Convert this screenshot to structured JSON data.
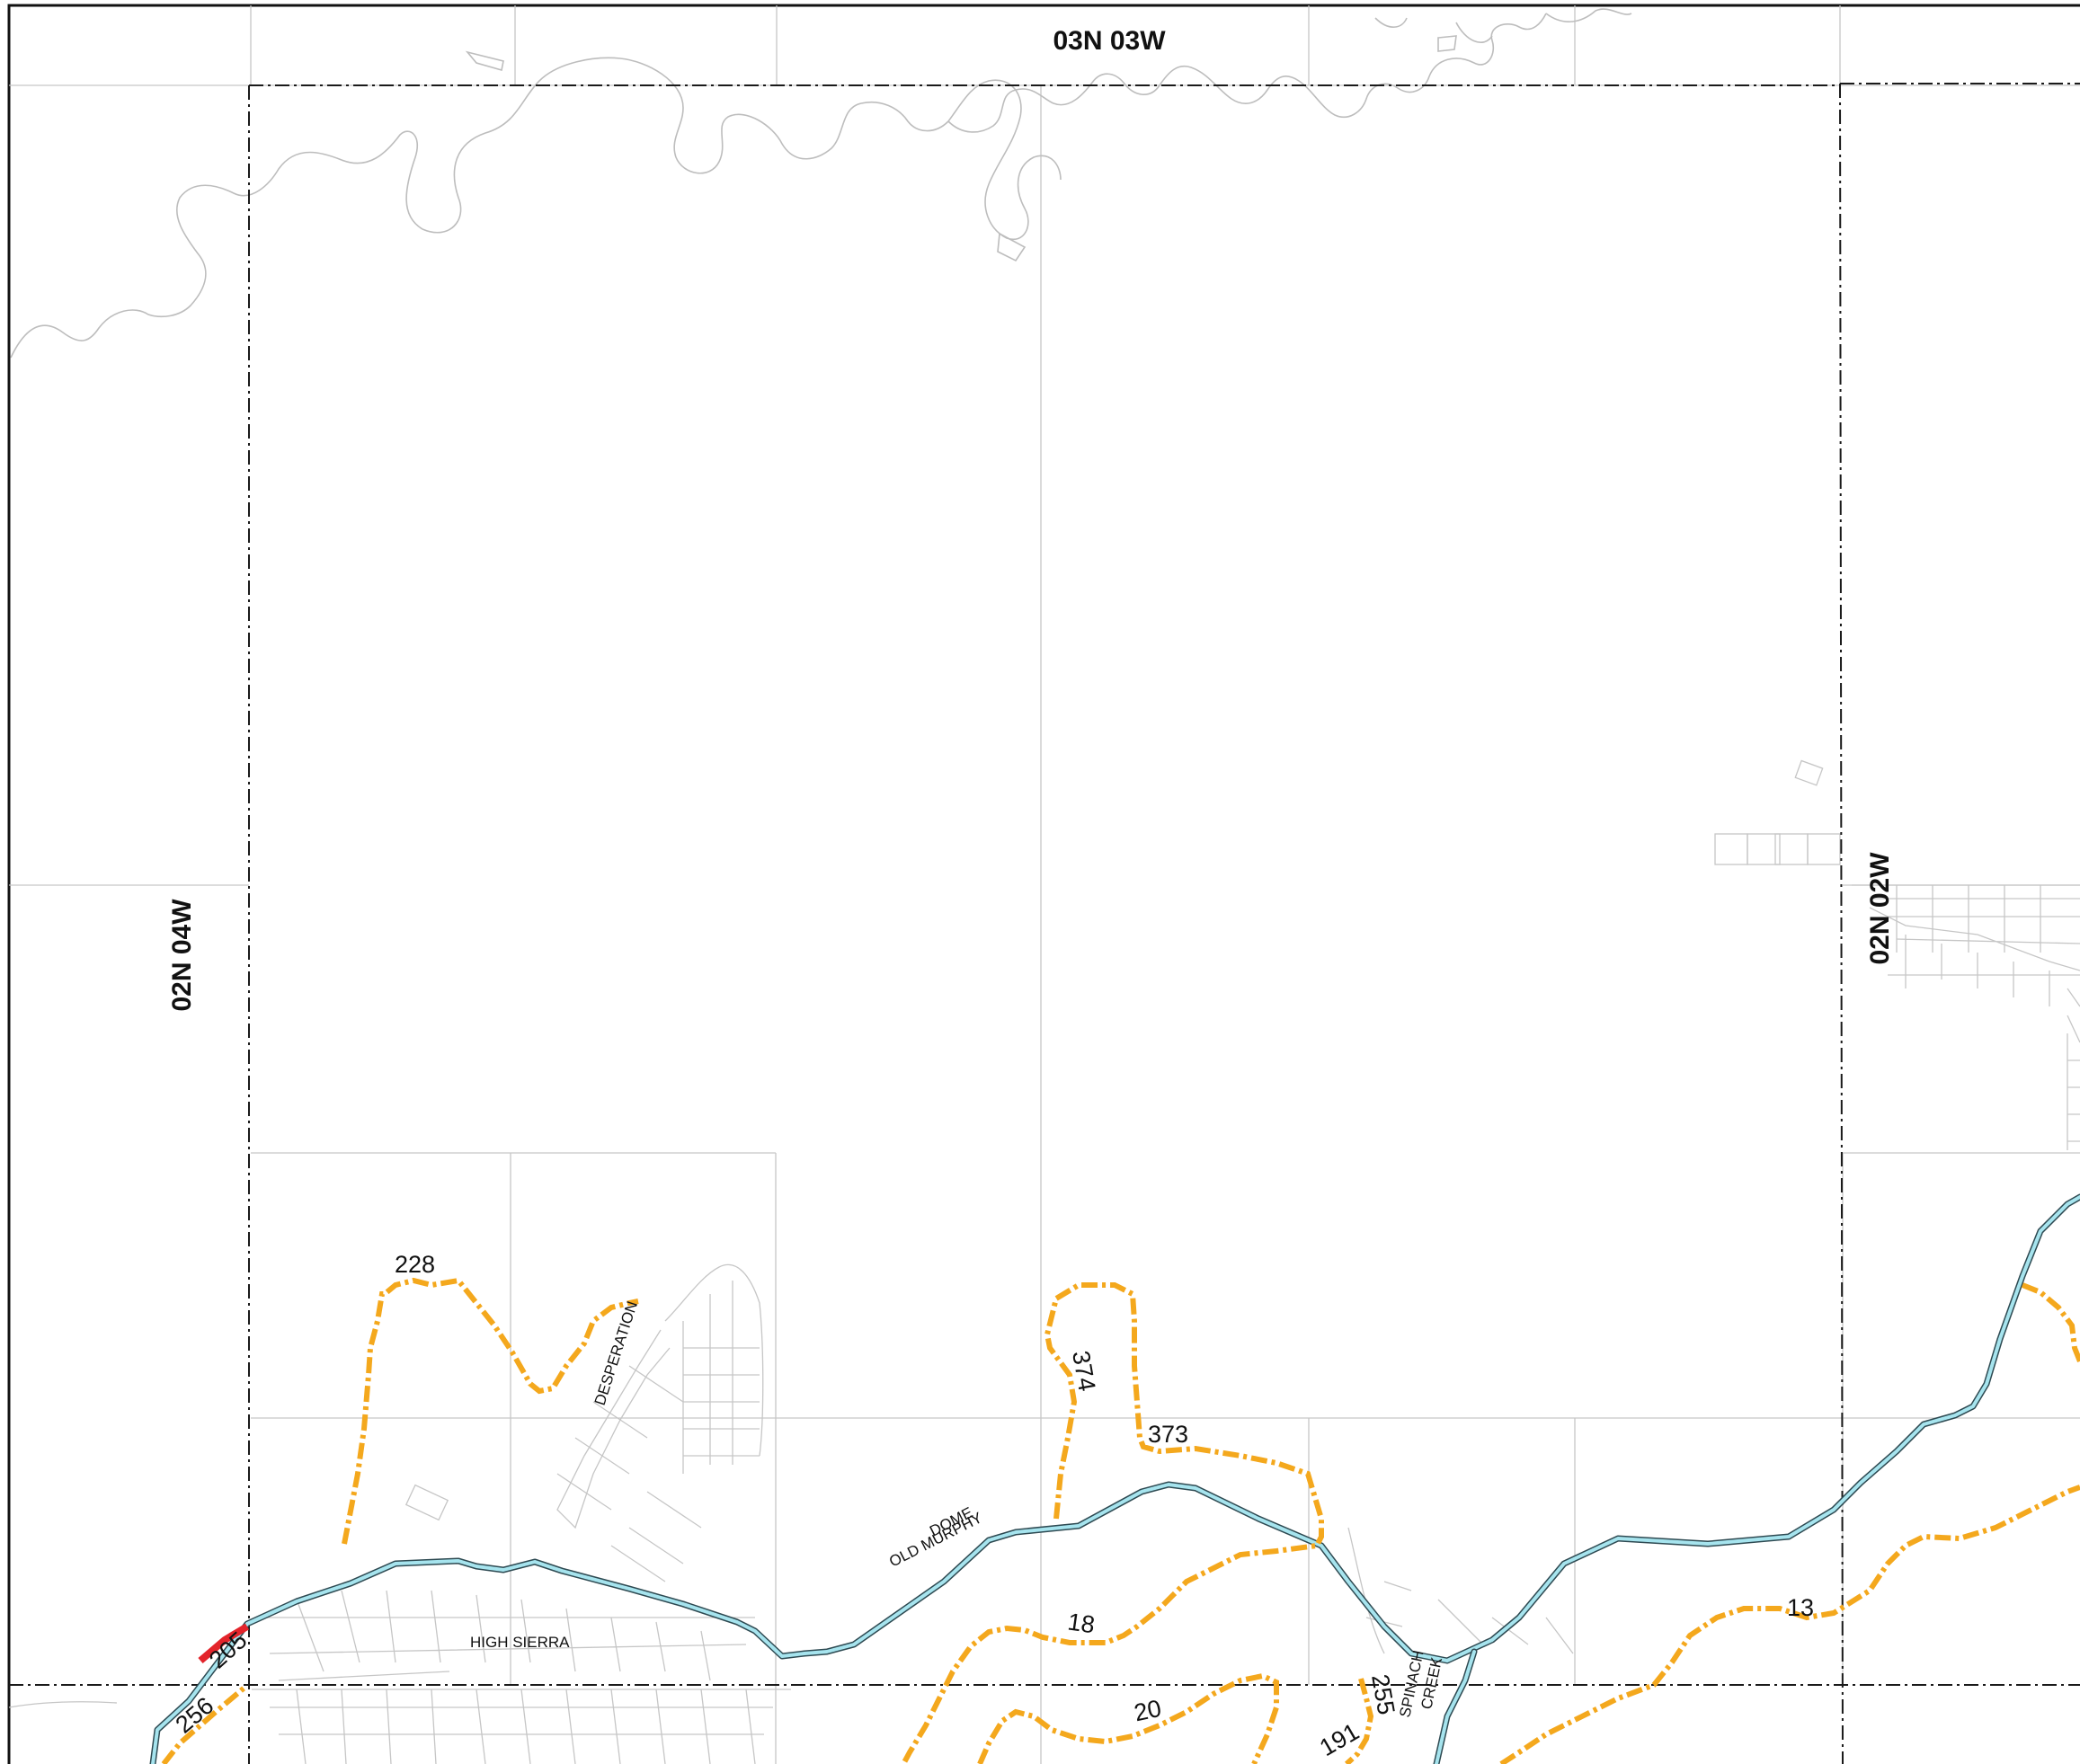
{
  "township_labels": {
    "north": "03N 03W",
    "west": "02N 04W",
    "east": "02N 02W"
  },
  "trail_numbers": [
    "228",
    "374",
    "373",
    "18",
    "20",
    "13",
    "13",
    "205",
    "256",
    "191",
    "255"
  ],
  "road_names": {
    "desperation": "DESPERATION",
    "high_sierra": "HIGH SIERRA",
    "old_murphy_1": "OLD MURPHY",
    "old_murphy_2": "DOME",
    "spinach_1": "SPINACH",
    "spinach_2": "CREEK"
  },
  "colors": {
    "trail_orange": "#F4A81D",
    "road_fill": "#A6E4EE",
    "road_casing": "#2E4A52",
    "red_segment": "#E3242B",
    "township_line": "#1A1A1A",
    "parcel_line": "#C6C6C6"
  }
}
